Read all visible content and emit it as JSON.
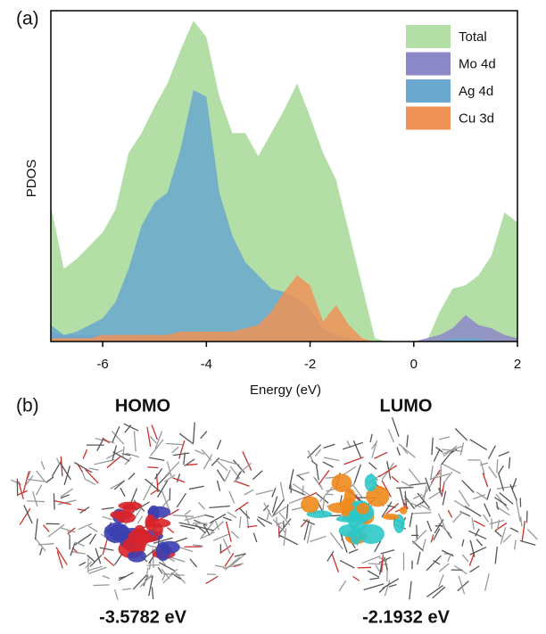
{
  "panel_labels": [
    "(a)",
    "(b)"
  ],
  "chart_data": {
    "type": "area",
    "xlabel": "Energy (eV)",
    "ylabel": "PDOS",
    "x": [
      -7,
      -6.75,
      -6.5,
      -6.25,
      -6,
      -5.75,
      -5.5,
      -5.25,
      -5,
      -4.75,
      -4.5,
      -4.25,
      -4,
      -3.75,
      -3.5,
      -3.25,
      -3,
      -2.75,
      -2.5,
      -2.25,
      -2,
      -1.75,
      -1.5,
      -1.25,
      -1,
      -0.75,
      -0.5,
      -0.25,
      0,
      0.25,
      0.5,
      0.75,
      1,
      1.25,
      1.5,
      1.75,
      2
    ],
    "xlim": [
      -7,
      2
    ],
    "xticks": [
      -6,
      -4,
      -2,
      0,
      2
    ],
    "ylim": [
      0,
      1
    ],
    "legend": "upper right",
    "series": [
      {
        "name": "Total",
        "color": "#b3dea6",
        "values": [
          0.41,
          0.22,
          0.25,
          0.29,
          0.33,
          0.4,
          0.57,
          0.63,
          0.71,
          0.78,
          0.88,
          0.97,
          0.92,
          0.74,
          0.63,
          0.63,
          0.56,
          0.63,
          0.7,
          0.78,
          0.68,
          0.57,
          0.49,
          0.33,
          0.17,
          0.01,
          0,
          0,
          0,
          0,
          0.09,
          0.16,
          0.17,
          0.2,
          0.26,
          0.39,
          0.36
        ]
      },
      {
        "name": "Mo 4d",
        "color": "#8d88c8",
        "values": [
          0.03,
          0.02,
          0.02,
          0.02,
          0.02,
          0.02,
          0.02,
          0.01,
          0.01,
          0.01,
          0.01,
          0.01,
          0.01,
          0.01,
          0.01,
          0.01,
          0.01,
          0.01,
          0.01,
          0.01,
          0.01,
          0.01,
          0.01,
          0,
          0,
          0,
          0,
          0,
          0,
          0.01,
          0.02,
          0.04,
          0.08,
          0.05,
          0.04,
          0.02,
          0.01
        ]
      },
      {
        "name": "Ag 4d",
        "color": "#6aa8cf",
        "values": [
          0.05,
          0.02,
          0.03,
          0.05,
          0.07,
          0.12,
          0.22,
          0.35,
          0.42,
          0.45,
          0.58,
          0.76,
          0.74,
          0.45,
          0.32,
          0.24,
          0.2,
          0.16,
          0.15,
          0.13,
          0.1,
          0.04,
          0.02,
          0.01,
          0,
          0,
          0,
          0,
          0,
          0,
          0,
          0.01,
          0.01,
          0.01,
          0,
          0,
          0
        ]
      },
      {
        "name": "Cu 3d",
        "color": "#ef9358",
        "values": [
          0.01,
          0.01,
          0.01,
          0.01,
          0.02,
          0.02,
          0.02,
          0.02,
          0.02,
          0.02,
          0.03,
          0.03,
          0.03,
          0.03,
          0.03,
          0.04,
          0.05,
          0.09,
          0.15,
          0.2,
          0.17,
          0.06,
          0.11,
          0.05,
          0.01,
          0,
          0,
          0,
          0,
          0,
          0,
          0,
          0,
          0,
          0,
          0,
          0
        ]
      }
    ]
  },
  "orbitals": [
    {
      "label": "HOMO",
      "energy": "-3.5782 eV"
    },
    {
      "label": "LUMO",
      "energy": "-2.1932 eV"
    }
  ]
}
